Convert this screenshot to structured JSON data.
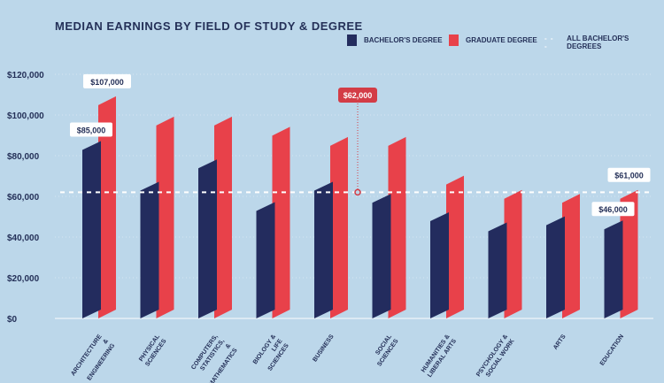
{
  "chart_data": {
    "type": "bar",
    "title": "MEDIAN EARNINGS BY FIELD OF STUDY & DEGREE",
    "categories": [
      "ARCHITECTURE & ENGINEERING",
      "PHYSICAL SCIENCES",
      "COMPUTERS, STATISTICS, & MATHEMATICS",
      "BIOLOGY & LIFE SCIENCES",
      "BUSINESS",
      "SOCIAL SCIENCES",
      "HUMANITIES & LIBERAL ARTS",
      "PSYCHOLOGY & SOCIAL WORK",
      "ARTS",
      "EDUCATION"
    ],
    "series": [
      {
        "name": "BACHELOR'S DEGREE",
        "color": "#232c5e",
        "values": [
          85000,
          65000,
          76000,
          55000,
          65000,
          59000,
          50000,
          45000,
          48000,
          46000
        ]
      },
      {
        "name": "GRADUATE DEGREE",
        "color": "#e8414a",
        "values": [
          107000,
          97000,
          97000,
          92000,
          87000,
          87000,
          68000,
          61000,
          59000,
          61000
        ]
      }
    ],
    "reference_line": {
      "name": "ALL BACHELOR'S DEGREES",
      "value": 62000,
      "label": "$62,000"
    },
    "annotations": [
      {
        "text": "$107,000",
        "category": 0,
        "series": 1
      },
      {
        "text": "$85,000",
        "category": 0,
        "series": 0
      },
      {
        "text": "$61,000",
        "category": 9,
        "series": 1
      },
      {
        "text": "$46,000",
        "category": 9,
        "series": 0
      }
    ],
    "yticks": [
      "$0",
      "$20,000",
      "$40,000",
      "$60,000",
      "$80,000",
      "$100,000",
      "$120,000"
    ],
    "ytick_values": [
      0,
      20000,
      40000,
      60000,
      80000,
      100000,
      120000
    ],
    "ylim": [
      0,
      120000
    ],
    "grid": true,
    "legend": "top-right"
  }
}
